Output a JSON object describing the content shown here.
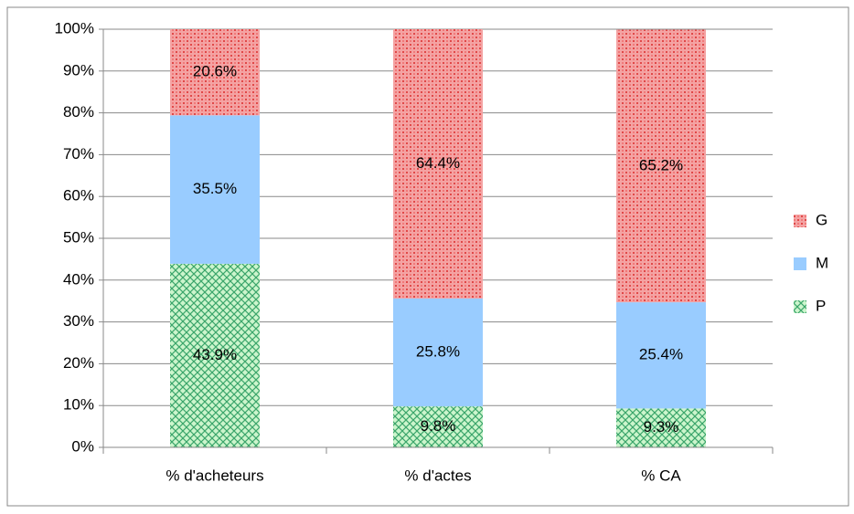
{
  "chart_data": {
    "type": "stacked_bar",
    "categories": [
      "% d'acheteurs",
      "% d'actes",
      "% CA"
    ],
    "series": [
      {
        "name": "P",
        "color": "#ccf5cc",
        "values": [
          43.9,
          9.8,
          9.3
        ],
        "value_labels": [
          "43.9%",
          "9.8%",
          "9.3%"
        ]
      },
      {
        "name": "M",
        "color": "#99ccff",
        "values": [
          35.5,
          25.8,
          25.4
        ],
        "value_labels": [
          "35.5%",
          "25.8%",
          "25.4%"
        ]
      },
      {
        "name": "G",
        "color": "#f4a3a3",
        "values": [
          20.6,
          64.4,
          65.2
        ],
        "value_labels": [
          "20.6%",
          "64.4%",
          "65.2%"
        ]
      }
    ],
    "ylim": [
      0,
      100
    ],
    "yticks": [
      {
        "value": 0,
        "label": "0%"
      },
      {
        "value": 10,
        "label": "10%"
      },
      {
        "value": 20,
        "label": "20%"
      },
      {
        "value": 30,
        "label": "30%"
      },
      {
        "value": 40,
        "label": "40%"
      },
      {
        "value": 50,
        "label": "50%"
      },
      {
        "value": 60,
        "label": "60%"
      },
      {
        "value": 70,
        "label": "70%"
      },
      {
        "value": 80,
        "label": "80%"
      },
      {
        "value": 90,
        "label": "90%"
      },
      {
        "value": 100,
        "label": "100%"
      }
    ],
    "grid": true,
    "legend": "right"
  }
}
